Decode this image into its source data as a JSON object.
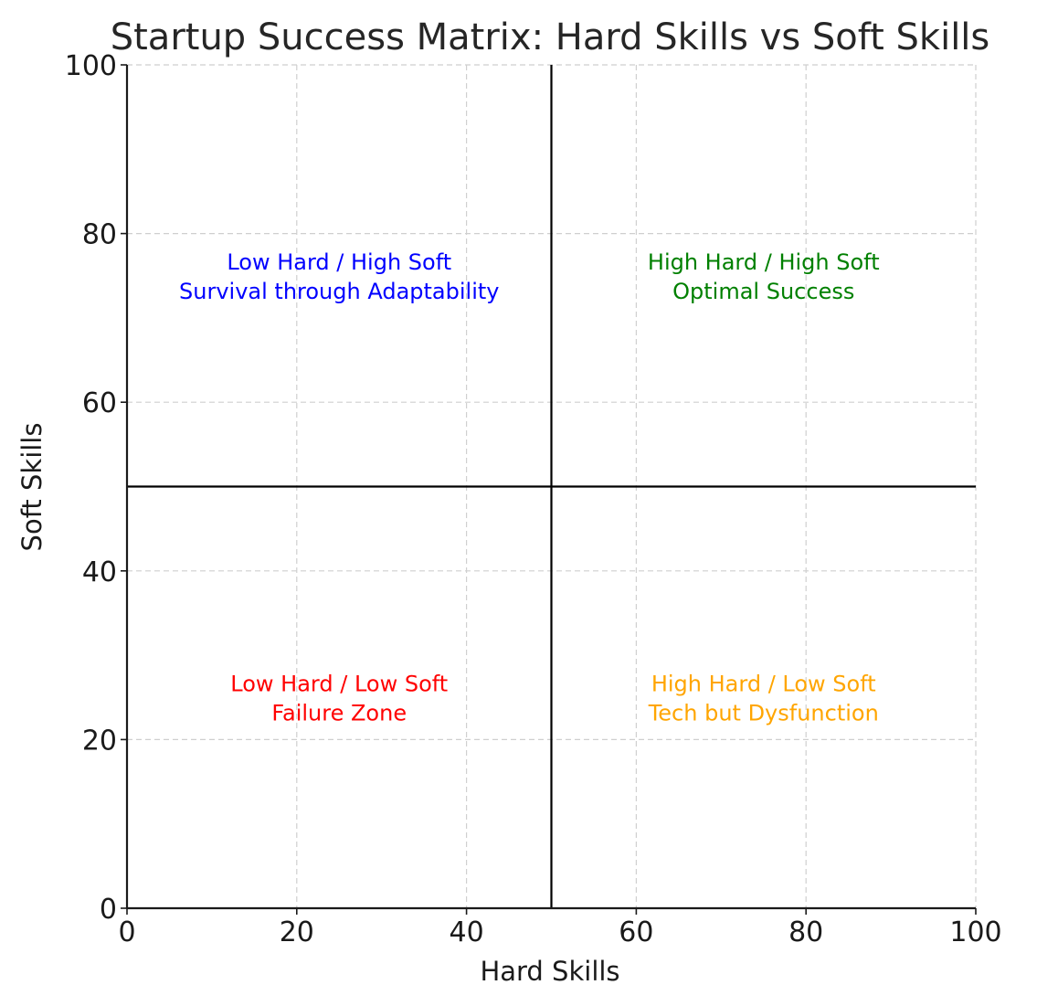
{
  "chart_data": {
    "type": "scatter",
    "title": "Startup Success Matrix: Hard Skills vs Soft Skills",
    "xlabel": "Hard Skills",
    "ylabel": "Soft Skills",
    "xlim": [
      0,
      100
    ],
    "ylim": [
      0,
      100
    ],
    "xticks": [
      0,
      20,
      40,
      60,
      80,
      100
    ],
    "yticks": [
      0,
      20,
      40,
      60,
      80,
      100
    ],
    "grid": true,
    "dividers": {
      "x": 50,
      "y": 50
    },
    "annotations": [
      {
        "id": "q-top-left",
        "x": 25,
        "y": 75,
        "color": "#0000ff",
        "lines": [
          "Low Hard / High Soft",
          "Survival through Adaptability"
        ]
      },
      {
        "id": "q-top-right",
        "x": 75,
        "y": 75,
        "color": "#008000",
        "lines": [
          "High Hard / High Soft",
          "Optimal Success"
        ]
      },
      {
        "id": "q-bottom-left",
        "x": 25,
        "y": 25,
        "color": "#ff0000",
        "lines": [
          "Low Hard / Low Soft",
          "Failure Zone"
        ]
      },
      {
        "id": "q-bottom-right",
        "x": 75,
        "y": 25,
        "color": "#ffa500",
        "lines": [
          "High Hard / Low Soft",
          "Tech but Dysfunction"
        ]
      }
    ]
  }
}
